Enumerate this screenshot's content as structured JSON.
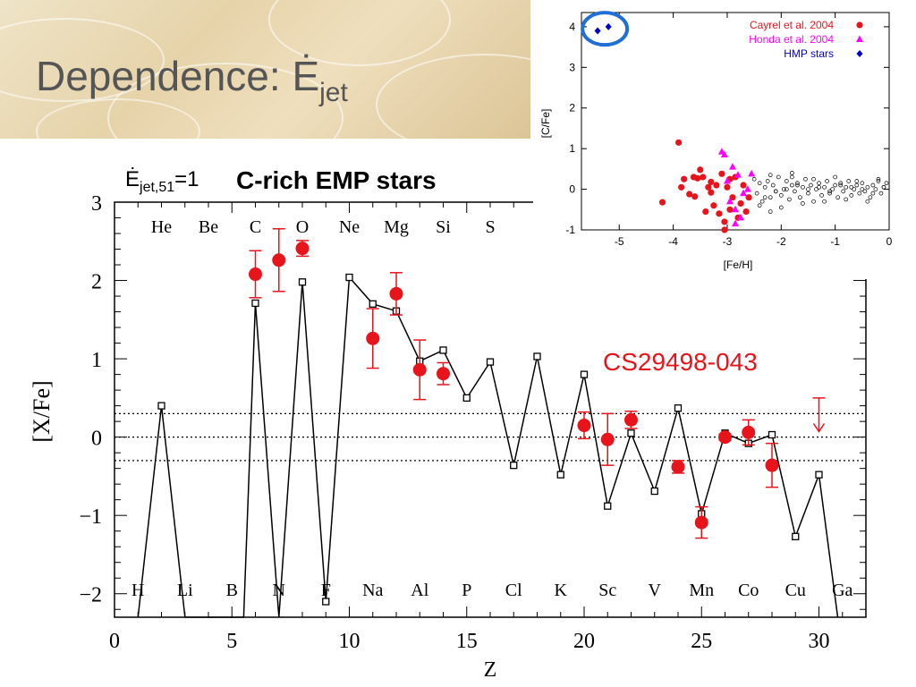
{
  "slide": {
    "title": "Dependence: Ė",
    "title_sub": "jet"
  },
  "colors": {
    "model": "#000000",
    "observed": "#e8141c",
    "cayrel": "#e8141c",
    "honda": "#ff00ff",
    "hmp": "#0000cc",
    "highlight_ring": "#1f6fd6",
    "annotation": "#e8141c",
    "header_bg": "#e6d3aa",
    "title_text": "#555555"
  },
  "chart_data": [
    {
      "type": "line",
      "header": {
        "energy_main": "Ė",
        "energy_sub": "jet,51",
        "energy_value": "=1",
        "title": "C-rich EMP stars"
      },
      "xlabel": "Z",
      "ylabel": "[X/Fe]",
      "xlim": [
        0,
        32
      ],
      "ylim": [
        -2.3,
        3.0
      ],
      "xticks": [
        0,
        5,
        10,
        15,
        20,
        25,
        30
      ],
      "yticks": [
        -2,
        -1,
        0,
        1,
        2,
        3
      ],
      "reference_lines": [
        0.3,
        0,
        -0.3
      ],
      "element_labels_top": [
        {
          "z": 2,
          "label": "He"
        },
        {
          "z": 4,
          "label": "Be"
        },
        {
          "z": 6,
          "label": "C"
        },
        {
          "z": 8,
          "label": "O"
        },
        {
          "z": 10,
          "label": "Ne"
        },
        {
          "z": 12,
          "label": "Mg"
        },
        {
          "z": 14,
          "label": "Si"
        },
        {
          "z": 16,
          "label": "S"
        }
      ],
      "element_labels_bottom": [
        {
          "z": 1,
          "label": "H"
        },
        {
          "z": 3,
          "label": "Li"
        },
        {
          "z": 5,
          "label": "B"
        },
        {
          "z": 7,
          "label": "N"
        },
        {
          "z": 9,
          "label": "F"
        },
        {
          "z": 11,
          "label": "Na"
        },
        {
          "z": 13,
          "label": "Al"
        },
        {
          "z": 15,
          "label": "P"
        },
        {
          "z": 17,
          "label": "Cl"
        },
        {
          "z": 19,
          "label": "K"
        },
        {
          "z": 21,
          "label": "Sc"
        },
        {
          "z": 23,
          "label": "V"
        },
        {
          "z": 25,
          "label": "Mn"
        },
        {
          "z": 27,
          "label": "Co"
        },
        {
          "z": 29,
          "label": "Cu"
        },
        {
          "z": 31,
          "label": "Ga"
        }
      ],
      "model_series": {
        "z": [
          1,
          2,
          3,
          5.5,
          6,
          7,
          8,
          9,
          10,
          11,
          12,
          13,
          14,
          15,
          16,
          17,
          18,
          19,
          20,
          21,
          22,
          23,
          24,
          25,
          26,
          27,
          28,
          29,
          30,
          30.8
        ],
        "value": [
          -2.3,
          0.4,
          -2.3,
          -2.3,
          1.71,
          -2.3,
          1.98,
          -2.1,
          2.04,
          1.7,
          1.61,
          0.97,
          1.11,
          0.5,
          0.96,
          -0.36,
          1.03,
          -0.48,
          0.8,
          -0.88,
          0.05,
          -0.69,
          0.37,
          -0.98,
          0.05,
          -0.08,
          0.03,
          -1.27,
          -0.48,
          -2.3
        ],
        "markers": [
          2,
          6,
          8,
          9,
          10,
          11,
          12,
          13,
          14,
          15,
          16,
          17,
          18,
          19,
          20,
          21,
          22,
          23,
          24,
          25,
          26,
          27,
          28,
          29,
          30
        ]
      },
      "observed_series": {
        "name": "CS29498-043",
        "points": [
          {
            "z": 6,
            "value": 2.08,
            "err": 0.3
          },
          {
            "z": 7,
            "value": 2.26,
            "err": 0.4
          },
          {
            "z": 8,
            "value": 2.41,
            "err": 0.1
          },
          {
            "z": 11,
            "value": 1.26,
            "err": 0.38
          },
          {
            "z": 12,
            "value": 1.83,
            "err": 0.27
          },
          {
            "z": 13,
            "value": 0.86,
            "err": 0.38
          },
          {
            "z": 14,
            "value": 0.81,
            "err": 0.14
          },
          {
            "z": 20,
            "value": 0.15,
            "err": 0.17
          },
          {
            "z": 21,
            "value": -0.03,
            "err": 0.33
          },
          {
            "z": 22,
            "value": 0.22,
            "err": 0.11
          },
          {
            "z": 24,
            "value": -0.38,
            "err": 0.08
          },
          {
            "z": 25,
            "value": -1.09,
            "err": 0.2
          },
          {
            "z": 26,
            "value": 0.0,
            "err": 0.04
          },
          {
            "z": 27,
            "value": 0.06,
            "err": 0.16
          },
          {
            "z": 28,
            "value": -0.36,
            "err": 0.28
          }
        ],
        "upper_limits": [
          {
            "z": 30,
            "value": 0.5,
            "to": 0.07
          }
        ]
      }
    },
    {
      "type": "scatter",
      "xlabel": "[Fe/H]",
      "ylabel": "[C/Fe]",
      "xlim": [
        -5.7,
        0
      ],
      "ylim": [
        -1,
        4.35
      ],
      "xticks": [
        -5,
        -4,
        -3,
        -2,
        -1,
        0
      ],
      "yticks": [
        -1,
        0,
        1,
        2,
        3,
        4
      ],
      "legend_position": "top-right",
      "series": [
        {
          "name": "Cayrel et al. 2004",
          "marker": "circle",
          "x": [
            -4.2,
            -3.9,
            -3.85,
            -3.8,
            -3.7,
            -3.62,
            -3.55,
            -3.5,
            -3.45,
            -3.4,
            -3.35,
            -3.3,
            -3.25,
            -3.2,
            -3.15,
            -3.1,
            -3.05,
            -3.0,
            -2.95,
            -2.9,
            -2.85,
            -2.8,
            -2.75,
            -2.7,
            -2.65,
            -2.6,
            -3.6,
            -3.3,
            -3.05,
            -2.95
          ],
          "y": [
            -0.32,
            1.15,
            0.05,
            0.25,
            -0.12,
            0.3,
            0.27,
            0.48,
            0.3,
            -0.55,
            0.05,
            0.18,
            -0.4,
            0.1,
            -0.6,
            0.38,
            -0.8,
            0.05,
            -0.5,
            -0.2,
            0.3,
            -0.7,
            -0.35,
            0.1,
            -0.55,
            -0.2,
            -0.18,
            -0.08,
            -1.0,
            0.25
          ]
        },
        {
          "name": "Honda et al. 2004",
          "marker": "triangle",
          "x": [
            -3.1,
            -3.0,
            -2.95,
            -2.9,
            -2.85,
            -2.8,
            -2.75,
            -2.7,
            -2.62,
            -2.55,
            -3.05,
            -2.85
          ],
          "y": [
            0.92,
            0.2,
            -0.3,
            0.55,
            -0.5,
            0.35,
            -0.7,
            -0.1,
            0.0,
            0.38,
            0.85,
            -0.85
          ]
        },
        {
          "name": "HMP stars",
          "marker": "diamond",
          "x": [
            -5.4,
            -5.2
          ],
          "y": [
            3.9,
            4.0
          ]
        },
        {
          "name": "",
          "marker": "open-circle",
          "x": [
            -2.5,
            -2.45,
            -2.4,
            -2.35,
            -2.3,
            -2.25,
            -2.2,
            -2.15,
            -2.1,
            -2.05,
            -2.0,
            -1.95,
            -1.9,
            -1.85,
            -1.8,
            -1.75,
            -1.7,
            -1.65,
            -1.6,
            -1.55,
            -1.5,
            -1.45,
            -1.4,
            -1.35,
            -1.3,
            -1.25,
            -1.2,
            -1.15,
            -1.1,
            -1.05,
            -1.0,
            -0.95,
            -0.9,
            -0.85,
            -0.8,
            -0.75,
            -0.7,
            -0.65,
            -0.6,
            -0.55,
            -0.5,
            -0.45,
            -0.4,
            -0.35,
            -0.3,
            -0.25,
            -0.2,
            -0.15,
            -0.1,
            -0.05,
            -2.4,
            -2.2,
            -2.0,
            -1.8,
            -1.6,
            -1.4,
            -1.2,
            -1.0,
            -0.8,
            -0.6,
            -0.4,
            -0.2,
            -2.3,
            -1.9,
            -1.5,
            -1.1,
            -0.7,
            -0.3,
            -2.1,
            -1.7,
            -1.3,
            -0.9,
            -0.5,
            -0.1,
            -1.8,
            -2.2
          ],
          "y": [
            0.25,
            -0.1,
            0.15,
            -0.3,
            0.05,
            0.2,
            -0.2,
            0.1,
            -0.05,
            0.3,
            -0.15,
            0.0,
            0.2,
            -0.25,
            0.1,
            -0.05,
            0.15,
            -0.2,
            0.05,
            0.25,
            -0.1,
            0.1,
            -0.3,
            0.0,
            0.15,
            -0.15,
            0.05,
            0.2,
            -0.1,
            0.0,
            0.1,
            -0.2,
            0.15,
            -0.05,
            0.05,
            0.2,
            -0.15,
            0.0,
            0.1,
            -0.1,
            0.15,
            -0.05,
            0.05,
            -0.2,
            0.1,
            0.0,
            0.2,
            -0.1,
            0.05,
            0.15,
            -0.4,
            0.35,
            -0.45,
            0.3,
            -0.35,
            0.25,
            -0.3,
            0.3,
            -0.25,
            0.2,
            -0.3,
            0.25,
            -0.2,
            0.0,
            0.0,
            -0.05,
            0.05,
            -0.1,
            -0.05,
            0.1,
            0.05,
            0.1,
            0.0,
            0.05,
            0.4,
            -0.55
          ]
        }
      ],
      "highlight": {
        "x": -5.3,
        "y": 3.95
      }
    }
  ],
  "annotation": {
    "label": "CS29498-043"
  }
}
